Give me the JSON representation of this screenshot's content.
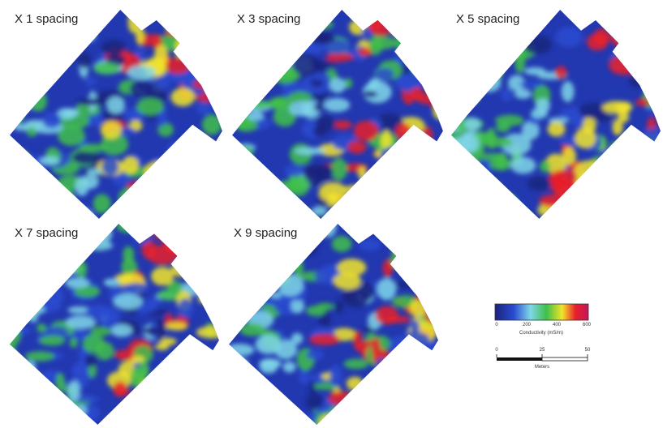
{
  "panels": [
    {
      "label": "X 1 spacing"
    },
    {
      "label": "X 3 spacing"
    },
    {
      "label": "X 5 spacing"
    },
    {
      "label": "X 7 spacing"
    },
    {
      "label": "X 9 spacing"
    }
  ],
  "legend": {
    "title": "Conductivity (mS/m)",
    "ticks": [
      0,
      200,
      400,
      600
    ]
  },
  "scale_bar": {
    "ticks": [
      0,
      25,
      50
    ],
    "unit": "Meters"
  }
}
